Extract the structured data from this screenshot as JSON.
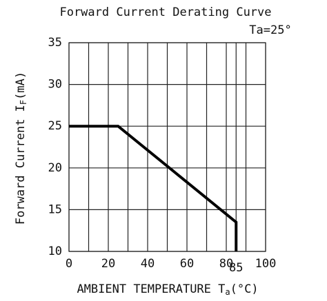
{
  "chart_data": {
    "type": "line",
    "title": "Forward Current Derating Curve",
    "annotation": "Ta=25°",
    "x_label": "AMBIENT TEMPERATURE T",
    "x_label_sub": "a",
    "x_label_unit": "(°C)",
    "y_label": "Forward Current I",
    "y_label_sub": "F",
    "y_label_unit": "(mA)",
    "x": [
      0,
      25,
      85,
      85
    ],
    "series": [
      {
        "name": "IF",
        "color": "#000000",
        "values": [
          25,
          25,
          13.5,
          10
        ]
      }
    ],
    "xlim": [
      0,
      100
    ],
    "xticks": [
      0,
      20,
      40,
      60,
      80,
      85,
      100
    ],
    "xminorticks": [
      10,
      30,
      50,
      70,
      90
    ],
    "ylim": [
      10,
      35
    ],
    "yticks": [
      10,
      15,
      20,
      25,
      30,
      35
    ],
    "grid": true
  }
}
